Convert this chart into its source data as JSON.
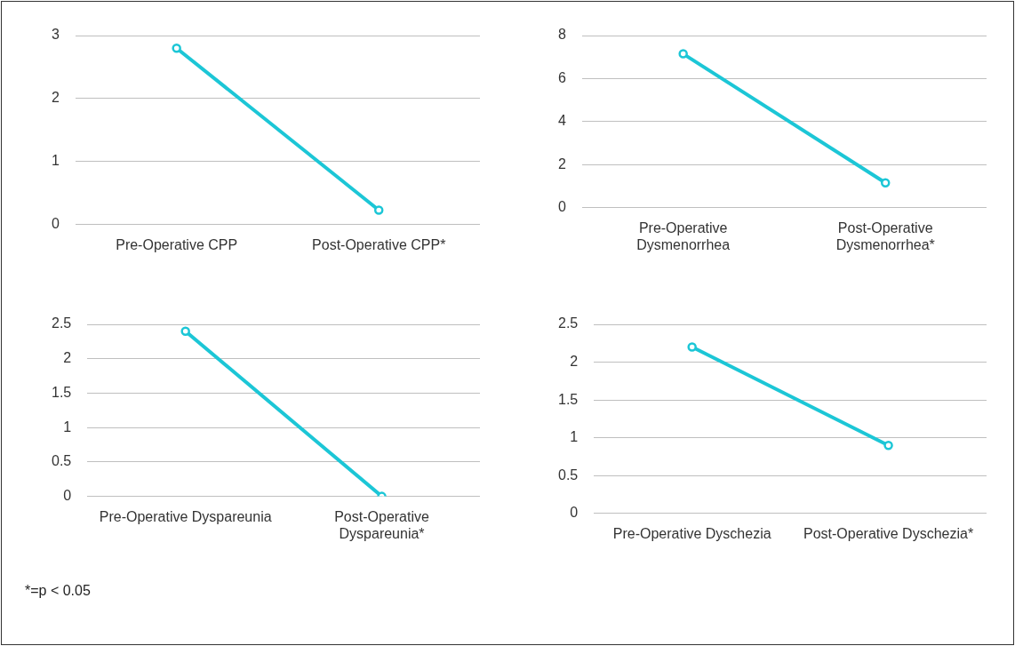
{
  "chart_data": [
    {
      "type": "line",
      "categories": [
        "Pre-Operative CPP",
        "Post-Operative CPP*"
      ],
      "series": [
        {
          "color": "#1cc6d6",
          "values": [
            2.8,
            0.23
          ]
        }
      ],
      "ylim": [
        0,
        3
      ],
      "yticks": [
        0,
        1,
        2,
        3
      ],
      "grid": "y",
      "marker": "circle",
      "legend": false
    },
    {
      "type": "line",
      "categories": [
        "Pre-Operative Dysmenorrhea",
        "Post-Operative Dysmenorrhea*"
      ],
      "series": [
        {
          "color": "#1cc6d6",
          "values": [
            7.15,
            1.15
          ]
        }
      ],
      "ylim": [
        0,
        8
      ],
      "yticks": [
        0,
        2,
        4,
        6,
        8
      ],
      "grid": "y",
      "marker": "circle",
      "legend": false
    },
    {
      "type": "line",
      "categories": [
        "Pre-Operative Dyspareunia",
        "Post-Operative Dyspareunia*"
      ],
      "series": [
        {
          "color": "#1cc6d6",
          "values": [
            2.4,
            0
          ]
        }
      ],
      "ylim": [
        0,
        2.5
      ],
      "yticks": [
        0,
        0.5,
        1,
        1.5,
        2,
        2.5
      ],
      "grid": "y",
      "marker": "circle",
      "legend": false,
      "annotations": [
        "*=p < 0.05"
      ]
    },
    {
      "type": "line",
      "categories": [
        "Pre-Operative Dyschezia",
        "Post-Operative Dyschezia*"
      ],
      "series": [
        {
          "color": "#1cc6d6",
          "values": [
            2.2,
            0.9
          ]
        }
      ],
      "ylim": [
        0,
        2.5
      ],
      "yticks": [
        0,
        0.5,
        1,
        1.5,
        2,
        2.5
      ],
      "grid": "y",
      "marker": "circle",
      "legend": false
    }
  ]
}
